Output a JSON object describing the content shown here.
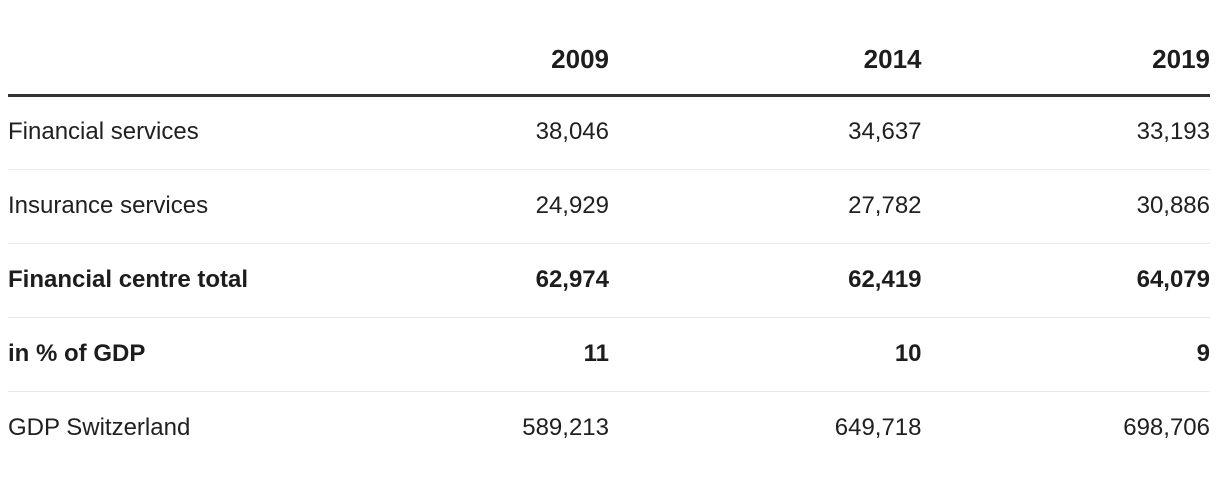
{
  "table": {
    "columns": {
      "label": "",
      "y2009": "2009",
      "y2014": "2014",
      "y2019": "2019"
    },
    "rows": [
      {
        "label": "Financial services",
        "v2009": "38,046",
        "v2014": "34,637",
        "v2019": "33,193",
        "bold": false
      },
      {
        "label": "Insurance services",
        "v2009": "24,929",
        "v2014": "27,782",
        "v2019": "30,886",
        "bold": false
      },
      {
        "label": "Financial centre total",
        "v2009": "62,974",
        "v2014": "62,419",
        "v2019": "64,079",
        "bold": true
      },
      {
        "label": "in % of GDP",
        "v2009": "11",
        "v2014": "10",
        "v2019": "9",
        "bold": true
      },
      {
        "label": "GDP Switzerland",
        "v2009": "589,213",
        "v2014": "649,718",
        "v2019": "698,706",
        "bold": false
      }
    ]
  },
  "colors": {
    "text": "#202020",
    "header_rule": "#333333",
    "row_divider": "#e9e9e9",
    "background": "#ffffff"
  },
  "chart_data": {
    "type": "table",
    "title": "",
    "categories": [
      "2009",
      "2014",
      "2019"
    ],
    "series": [
      {
        "name": "Financial services",
        "values": [
          38046,
          34637,
          33193
        ]
      },
      {
        "name": "Insurance services",
        "values": [
          24929,
          27782,
          30886
        ]
      },
      {
        "name": "Financial centre total",
        "values": [
          62974,
          62419,
          64079
        ]
      },
      {
        "name": "in % of GDP",
        "values": [
          11,
          10,
          9
        ]
      },
      {
        "name": "GDP Switzerland",
        "values": [
          589213,
          649718,
          698706
        ]
      }
    ]
  }
}
